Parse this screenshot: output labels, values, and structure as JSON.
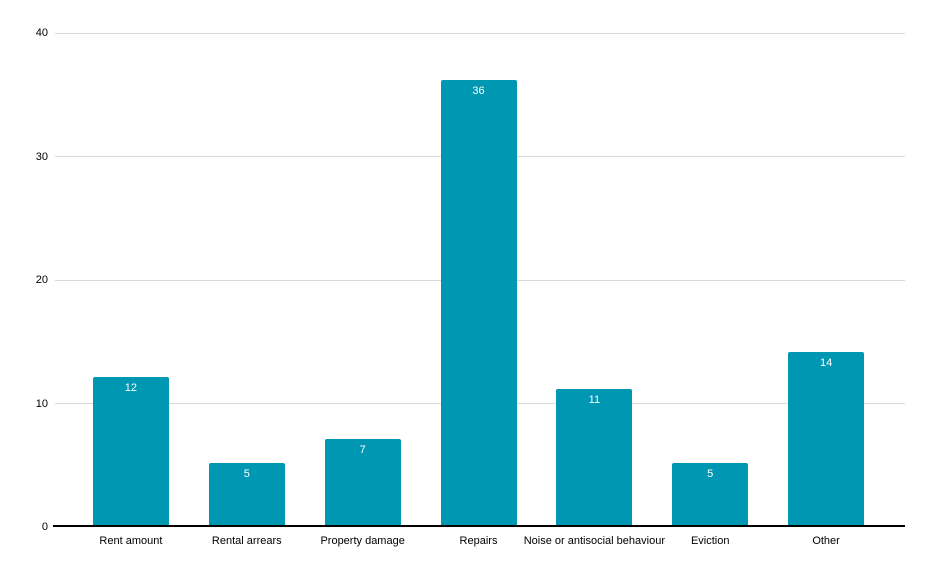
{
  "chart_data": {
    "type": "bar",
    "title": "",
    "xlabel": "",
    "ylabel": "",
    "categories": [
      "Rent amount",
      "Rental arrears",
      "Property damage",
      "Repairs",
      "Noise or antisocial behaviour",
      "Eviction",
      "Other"
    ],
    "values": [
      12,
      5,
      7,
      36,
      11,
      5,
      14
    ],
    "ylim": [
      0,
      40
    ],
    "yticks": [
      0,
      10,
      20,
      30,
      40
    ],
    "grid": true,
    "legend": "none",
    "bar_color": "#0097b2",
    "value_label_color": "#ffffff",
    "axis_text_color": "#000000",
    "gridline_color": "#d9d9d9",
    "baseline_color": "#000000",
    "background_color": "#ffffff"
  }
}
